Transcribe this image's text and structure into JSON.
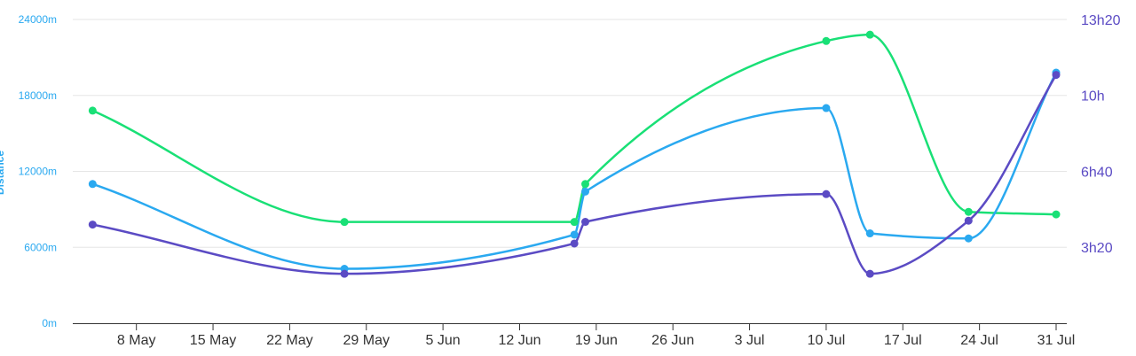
{
  "chart_data": {
    "type": "line",
    "x_axis": {
      "type": "date",
      "tick_labels": [
        "8 May",
        "15 May",
        "22 May",
        "29 May",
        "5 Jun",
        "12 Jun",
        "19 Jun",
        "26 Jun",
        "3 Jul",
        "10 Jul",
        "17 Jul",
        "24 Jul",
        "31 Jul"
      ],
      "range": [
        "2024-05-03",
        "2024-07-31"
      ]
    },
    "y_axis_left": {
      "label": "Distance",
      "unit": "m",
      "ylim": [
        0,
        24000
      ],
      "tick_labels": [
        "0m",
        "6000m",
        "12000m",
        "18000m",
        "24000m"
      ],
      "color": "#2aa9f0"
    },
    "y_axis_right": {
      "unit": "hours",
      "ylim": [
        0,
        13.333
      ],
      "tick_labels": [
        "3h20",
        "6h40",
        "10h",
        "13h20"
      ],
      "color": "#5b4bc4"
    },
    "grid": "horizontal",
    "series": [
      {
        "color": "#19e076",
        "axis": "left",
        "points": [
          {
            "x": "2024-05-04",
            "y": 16800
          },
          {
            "x": "2024-05-27",
            "y": 8000
          },
          {
            "x": "2024-06-17",
            "y": 8000
          },
          {
            "x": "2024-06-18",
            "y": 11000
          },
          {
            "x": "2024-07-10",
            "y": 22300
          },
          {
            "x": "2024-07-14",
            "y": 22800
          },
          {
            "x": "2024-07-23",
            "y": 8800
          },
          {
            "x": "2024-07-31",
            "y": 8600
          }
        ]
      },
      {
        "color": "#2aa9f0",
        "axis": "left",
        "points": [
          {
            "x": "2024-05-04",
            "y": 11000
          },
          {
            "x": "2024-05-27",
            "y": 4300
          },
          {
            "x": "2024-06-17",
            "y": 7000
          },
          {
            "x": "2024-06-18",
            "y": 10400
          },
          {
            "x": "2024-07-10",
            "y": 17000
          },
          {
            "x": "2024-07-14",
            "y": 7100
          },
          {
            "x": "2024-07-23",
            "y": 6700
          },
          {
            "x": "2024-07-31",
            "y": 19800
          }
        ]
      },
      {
        "color": "#5b4bc4",
        "axis": "right",
        "points": [
          {
            "x": "2024-05-04",
            "y": 4.33
          },
          {
            "x": "2024-05-27",
            "y": 2.17
          },
          {
            "x": "2024-06-17",
            "y": 3.5
          },
          {
            "x": "2024-06-18",
            "y": 4.45
          },
          {
            "x": "2024-07-10",
            "y": 5.67
          },
          {
            "x": "2024-07-14",
            "y": 2.17
          },
          {
            "x": "2024-07-23",
            "y": 4.5
          },
          {
            "x": "2024-07-31",
            "y": 10.9
          }
        ]
      }
    ]
  }
}
